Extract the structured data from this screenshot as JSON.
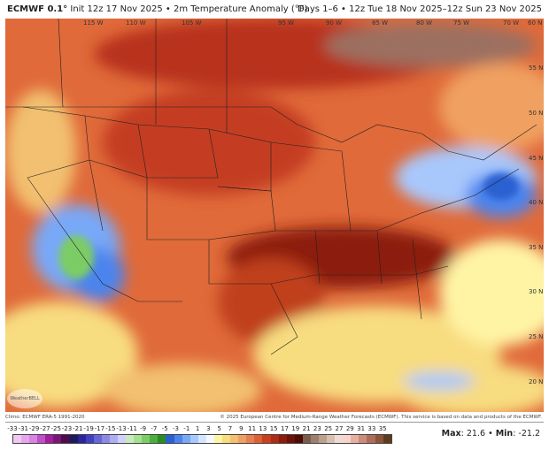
{
  "header": {
    "model": "ECMWF 0.1°",
    "init": " Init 12z 17 Nov 2025 • 2m Temperature Anomaly (°F)",
    "period": "Days 1–6 • 12z Tue 18 Nov 2025–12z Sun 23 Nov 2025"
  },
  "map": {
    "lon_labels": [
      "115 W",
      "110 W",
      "105 W",
      "95 W",
      "90 W",
      "85 W",
      "80 W",
      "75 W",
      "70 W"
    ],
    "lat_labels": [
      "60 N",
      "55 N",
      "50 N",
      "45 N",
      "40 N",
      "35 N",
      "30 N",
      "25 N",
      "20 N"
    ],
    "logo": "WeatherBELL"
  },
  "footer": {
    "climo": "Climo: ECMWF ERA-5 1991-2020",
    "copyright": "© 2025 European Centre for Medium-Range Weather Forecasts (ECMWF). This service is based on data and products of the ECMWF.",
    "max_label": "Max",
    "max_value": ": 21.6",
    "sep": " • ",
    "min_label": "Min",
    "min_value": ": -21.2"
  },
  "colorbar": {
    "ticks": [
      "-33",
      "-31",
      "-29",
      "-27",
      "-25",
      "-23",
      "-21",
      "-19",
      "-17",
      "-15",
      "-13",
      "-11",
      "-9",
      "-7",
      "-5",
      "-3",
      "-1",
      "1",
      "3",
      "5",
      "7",
      "9",
      "11",
      "13",
      "15",
      "17",
      "19",
      "21",
      "23",
      "25",
      "27",
      "29",
      "31",
      "33",
      "35"
    ],
    "colors": [
      "#f2c8f2",
      "#e6a6ec",
      "#d884e2",
      "#c050c8",
      "#a0209c",
      "#7a1478",
      "#4c0c50",
      "#1c1c5c",
      "#2c249c",
      "#4040c4",
      "#6666d6",
      "#8a8ae6",
      "#adadf2",
      "#d0d0fa",
      "#c8eac0",
      "#a4e08e",
      "#7ccc66",
      "#4cae3c",
      "#2c8c24",
      "#2c60d0",
      "#4c84ee",
      "#78a8f8",
      "#a8c8fc",
      "#d4e6ff",
      "#f4faff",
      "#fff4a4",
      "#f8dc80",
      "#f2c070",
      "#eea060",
      "#e68050",
      "#dc6034",
      "#c84020",
      "#ac2c14",
      "#8c1c0c",
      "#6c1008",
      "#4c0c04",
      "#7c5c4c",
      "#9c806c",
      "#bca08c",
      "#d8c0b0",
      "#eedcd4",
      "#f6d4cc",
      "#e6b0a0",
      "#cc8c7c",
      "#ae6c5c",
      "#8c5438",
      "#5c3c1c"
    ]
  }
}
